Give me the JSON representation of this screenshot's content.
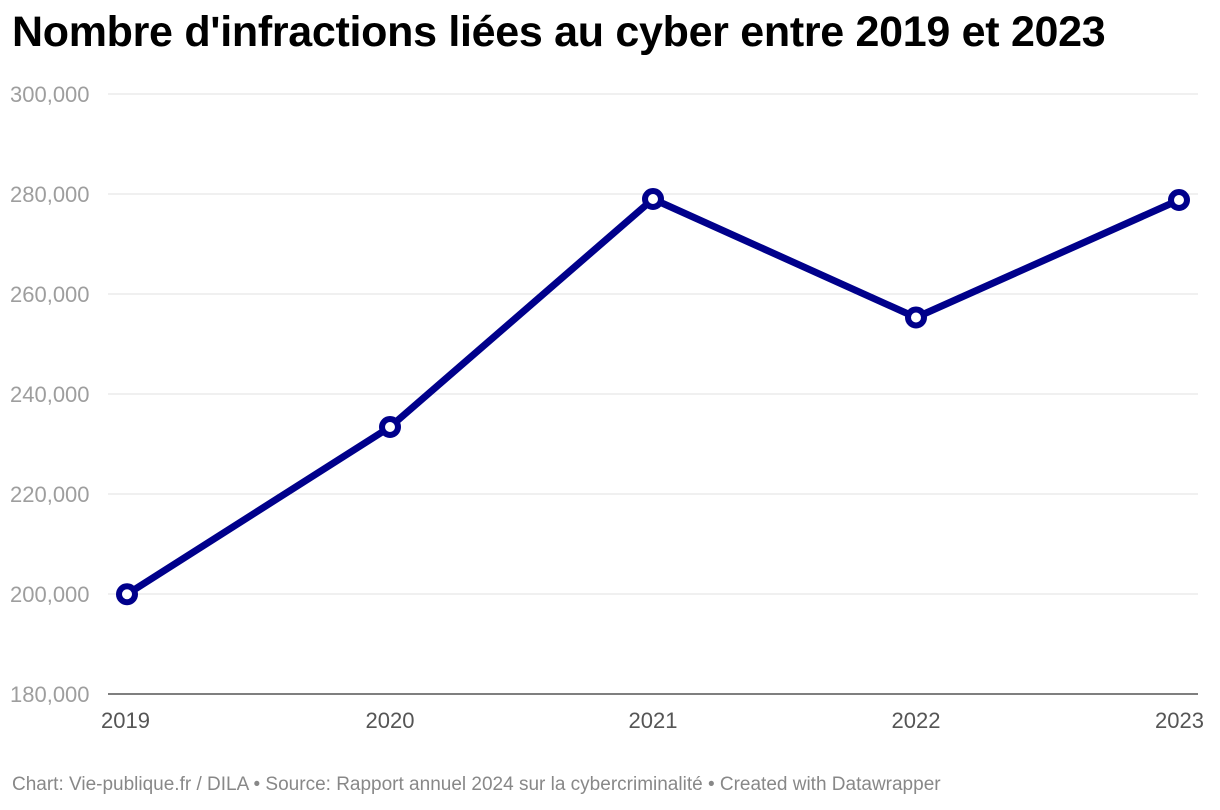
{
  "chart_data": {
    "type": "line",
    "title": "Nombre d'infractions liées au cyber entre 2019 et 2023",
    "categories": [
      "2019",
      "2020",
      "2021",
      "2022",
      "2023"
    ],
    "series": [
      {
        "name": "Nombre d'infractions",
        "values": [
          199950,
          233400,
          279000,
          255300,
          278800
        ]
      }
    ],
    "ylim": [
      180000,
      300000
    ],
    "yticks": [
      180000,
      200000,
      220000,
      240000,
      260000,
      280000,
      300000
    ],
    "ytick_labels": [
      "180,000",
      "200,000",
      "220,000",
      "240,000",
      "260,000",
      "280,000",
      "300,000"
    ],
    "xlabel": "",
    "ylabel": "",
    "grid": true,
    "line_color": "#00008b",
    "footer": "Chart: Vie-publique.fr / DILA • Source: Rapport annuel 2024 sur la cybercriminalité • Created with Datawrapper"
  }
}
